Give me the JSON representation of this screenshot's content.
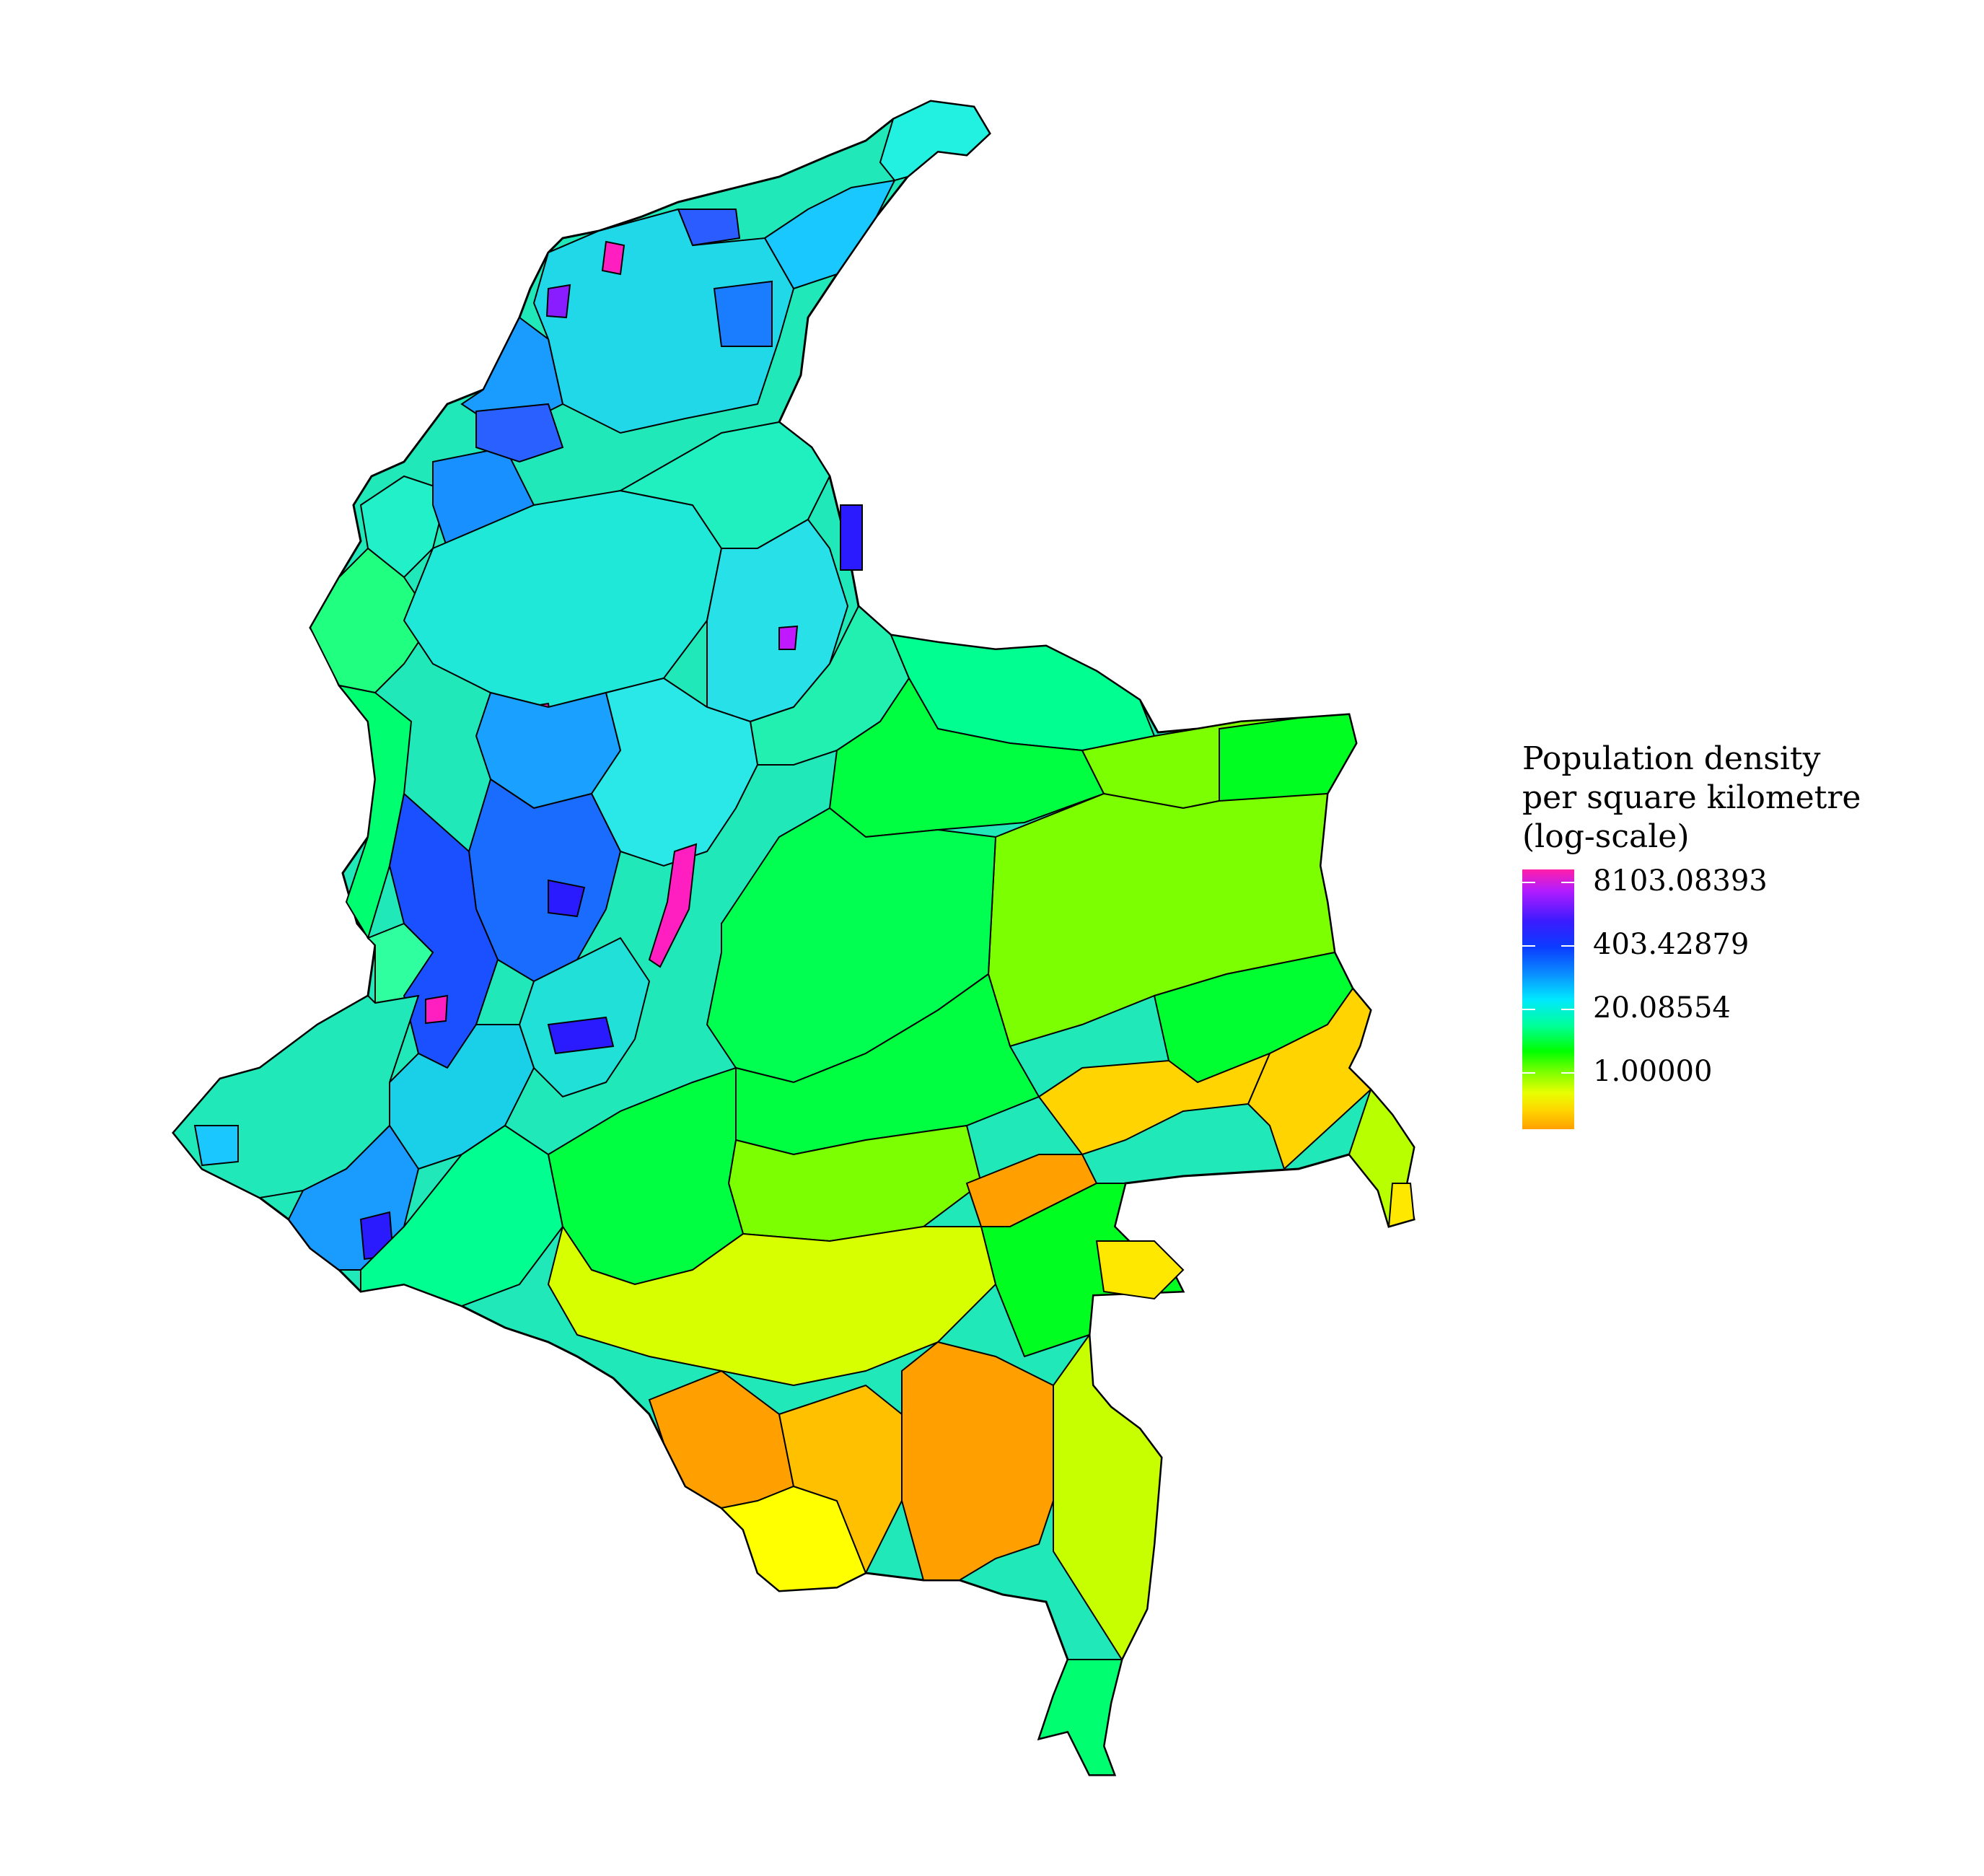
{
  "legend": {
    "title_lines": [
      "Population density",
      "per square kilometre",
      "(log-scale)"
    ],
    "labels": [
      "8103.08393",
      "403.42879",
      "20.08554",
      "1.00000"
    ]
  },
  "colors": {
    "very_high": "#ff1fa8",
    "high": "#2a1bff",
    "medium_high": "#0a8cff",
    "medium": "#00e8d0",
    "medium_low": "#00ff66",
    "low": "#7cff00",
    "very_low": "#d8ff00",
    "lowest": "#ffa000",
    "outline": "#000000"
  }
}
